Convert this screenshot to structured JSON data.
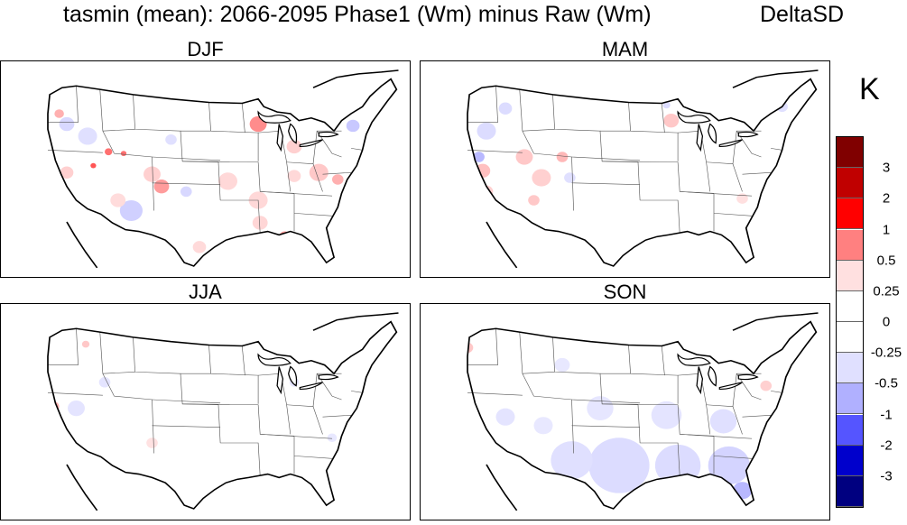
{
  "title": {
    "main": "tasmin (mean): 2066-2095 Phase1 (Wm) minus Raw (Wm)",
    "method": "DeltaSD"
  },
  "panels": [
    {
      "label": "DJF"
    },
    {
      "label": "MAM"
    },
    {
      "label": "JJA"
    },
    {
      "label": "SON"
    }
  ],
  "colorbar": {
    "unit": "K",
    "labels": [
      "3",
      "2",
      "1",
      "0.5",
      "0.25",
      "0",
      "-0.25",
      "-0.5",
      "-1",
      "-2",
      "-3"
    ],
    "colors": [
      "#800000",
      "#c00000",
      "#ff0000",
      "#ff8080",
      "#ffe0e0",
      "#ffffff",
      "#ffffff",
      "#e0e0ff",
      "#b0b0ff",
      "#5555ff",
      "#0000cc",
      "#000080"
    ]
  }
}
